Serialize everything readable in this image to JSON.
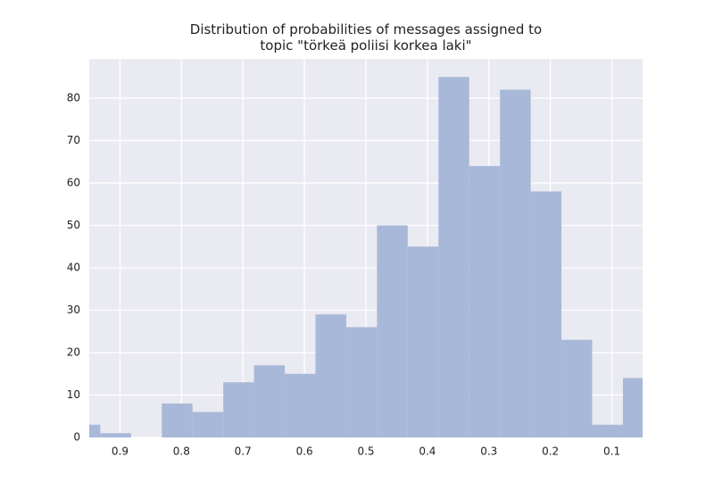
{
  "chart_data": {
    "type": "histogram",
    "title": "Distribution of probabilities of messages assigned to\ntopic \"törkeä poliisi korkea laki\"",
    "bins": [
      0.032,
      0.082,
      0.132,
      0.182,
      0.232,
      0.282,
      0.332,
      0.382,
      0.432,
      0.482,
      0.532,
      0.582,
      0.632,
      0.682,
      0.732,
      0.782,
      0.832,
      0.882,
      0.932,
      0.982
    ],
    "values": [
      14,
      3,
      23,
      58,
      82,
      64,
      85,
      45,
      50,
      26,
      29,
      15,
      17,
      13,
      6,
      8,
      0,
      1,
      3
    ],
    "color": "#a8b8d8",
    "xlim": [
      0.95,
      0.05
    ],
    "xticks": [
      0.9,
      0.8,
      0.7,
      0.6,
      0.5,
      0.4,
      0.3,
      0.2,
      0.1
    ],
    "ylim": [
      0,
      89.25
    ],
    "yticks": [
      0,
      10,
      20,
      30,
      40,
      50,
      60,
      70,
      80
    ],
    "grid": true
  }
}
